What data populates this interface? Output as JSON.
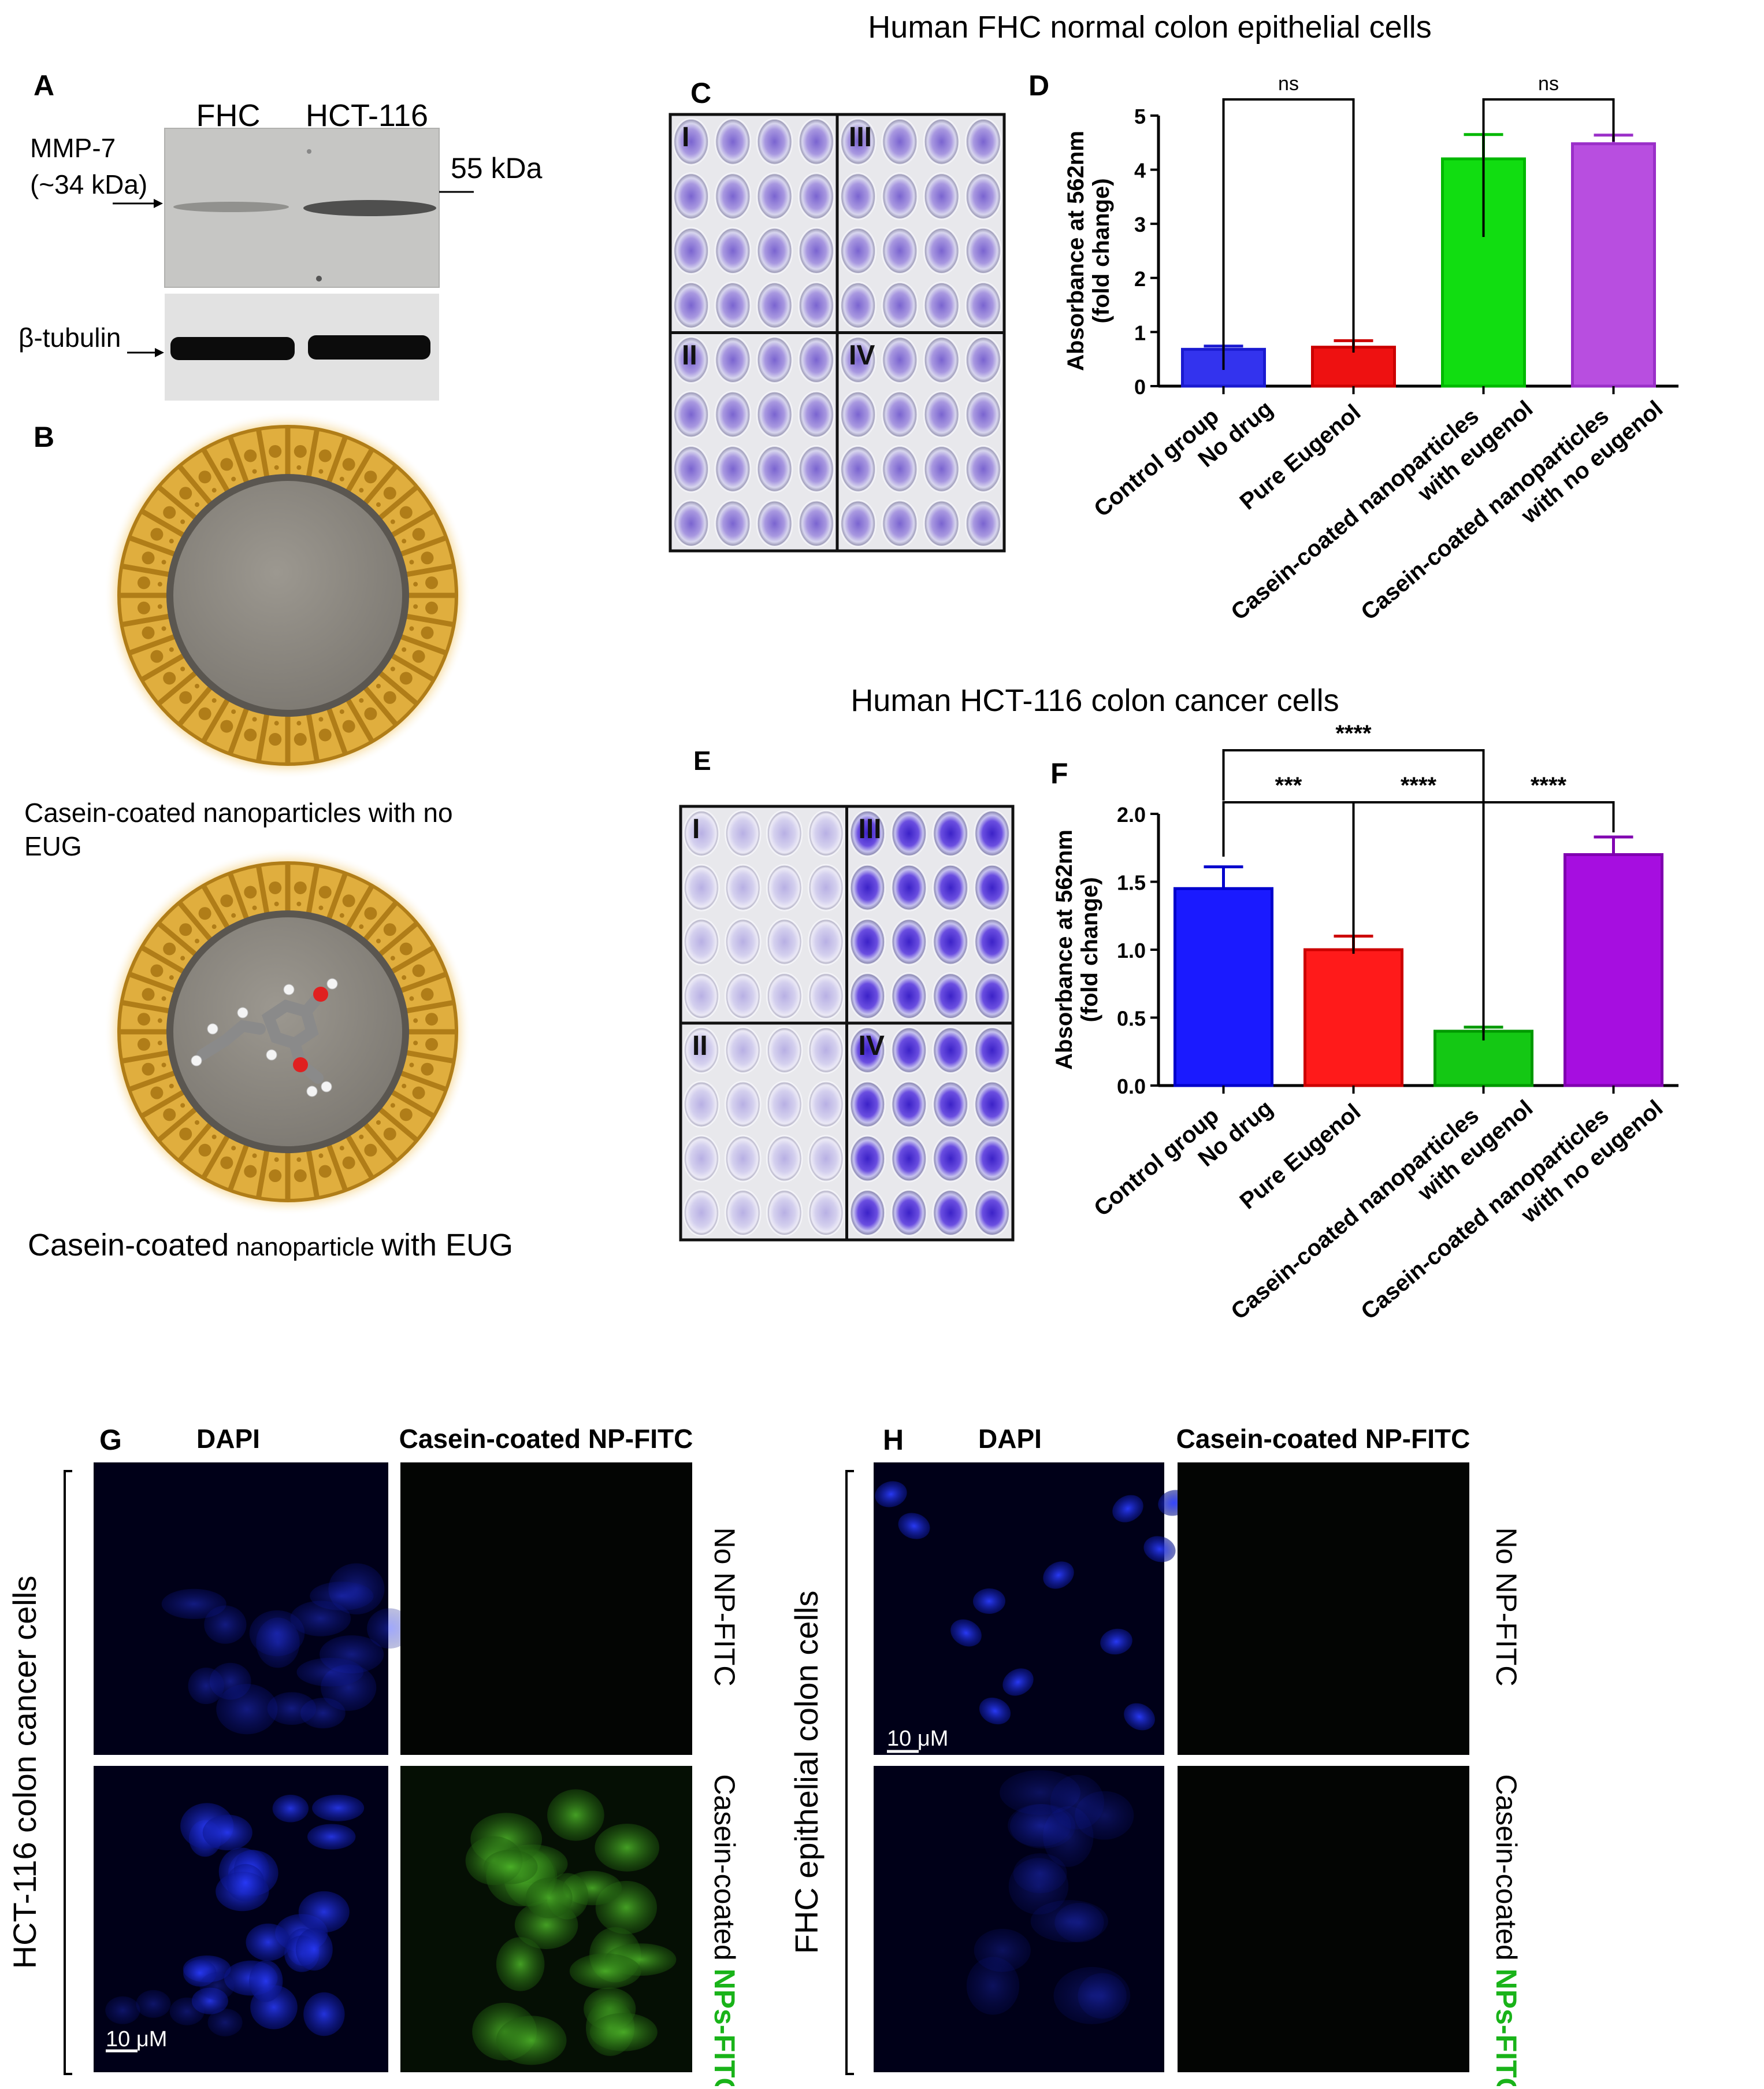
{
  "panels": {
    "A": "A",
    "B": "B",
    "C": "C",
    "D": "D",
    "E": "E",
    "F": "F",
    "G": "G",
    "H": "H"
  },
  "titles": {
    "fhc": "Human FHC normal colon epithelial cells",
    "hct": "Human HCT-116 colon cancer cells"
  },
  "blot": {
    "lane1": "FHC",
    "lane2": "HCT-116",
    "protein_line1": "MMP-7",
    "protein_line2": "(~34 kDa)",
    "marker": "55 kDa",
    "loading": "β-tubulin"
  },
  "nanoparticles": {
    "no_eug_line1": "Casein-coated nanoparticles with no",
    "no_eug_line2": "EUG",
    "with_eug_a": "Casein-coated",
    "with_eug_b": "nanoparticle",
    "with_eug_c": "with EUG"
  },
  "plates": {
    "quadrants": [
      "I",
      "III",
      "II",
      "IV"
    ]
  },
  "chart_data": [
    {
      "type": "bar",
      "panel": "D",
      "categories": [
        [
          "Control group",
          "No drug"
        ],
        [
          "Pure Eugenol"
        ],
        [
          "Casein-coated nanoparticles",
          "with eugenol"
        ],
        [
          "Casein-coated nanoparticles",
          "with no eugenol"
        ]
      ],
      "values": [
        0.68,
        0.72,
        4.2,
        4.48
      ],
      "errors": [
        0.06,
        0.12,
        0.45,
        0.16
      ],
      "colors": [
        "#3333ee",
        "#ee1111",
        "#11dd11",
        "#b84ee0"
      ],
      "edge_colors": [
        "#1a1ad0",
        "#cc0000",
        "#00b800",
        "#9a2fc8"
      ],
      "ylabel_line1": "Absorbance at 562nm",
      "ylabel_line2": "(fold change)",
      "ylim": [
        0,
        5
      ],
      "yticks": [
        "0",
        "1",
        "2",
        "3",
        "4",
        "5"
      ],
      "significance": [
        {
          "from": 0,
          "to": 1,
          "label": "ns"
        },
        {
          "from": 2,
          "to": 3,
          "label": "ns"
        }
      ]
    },
    {
      "type": "bar",
      "panel": "F",
      "categories": [
        [
          "Control group",
          "No drug"
        ],
        [
          "Pure Eugenol"
        ],
        [
          "Casein-coated nanoparticles",
          "with eugenol"
        ],
        [
          "Casein-coated nanoparticles",
          "with no eugenol"
        ]
      ],
      "values": [
        1.45,
        1.0,
        0.4,
        1.7
      ],
      "errors": [
        0.16,
        0.1,
        0.03,
        0.13
      ],
      "colors": [
        "#1a1aff",
        "#ff1a1a",
        "#14c814",
        "#a60ee0"
      ],
      "edge_colors": [
        "#0000cc",
        "#cc0000",
        "#009900",
        "#8000b0"
      ],
      "ylabel_line1": "Absorbance at 562nm",
      "ylabel_line2": "(fold change)",
      "ylim": [
        0,
        2.0
      ],
      "yticks": [
        "0.0",
        "0.5",
        "1.0",
        "1.5",
        "2.0"
      ],
      "significance": [
        {
          "from": 0,
          "to": 2,
          "label": "****"
        },
        {
          "from": 0,
          "to": 1,
          "label": "***"
        },
        {
          "from": 1,
          "to": 2,
          "label": "****"
        },
        {
          "from": 2,
          "to": 3,
          "label": "****"
        }
      ]
    }
  ],
  "microscopy": {
    "dapi": "DAPI",
    "np_fitc": "Casein-coated NP-FITC",
    "row_no": "No NP-FITC",
    "row_yes_a": "Casein-coated ",
    "row_yes_b": "NPs-FITC",
    "hct_side": "HCT-116 colon cancer cells",
    "fhc_side": "FHC epithelial colon cells",
    "scale": "10 μM"
  }
}
